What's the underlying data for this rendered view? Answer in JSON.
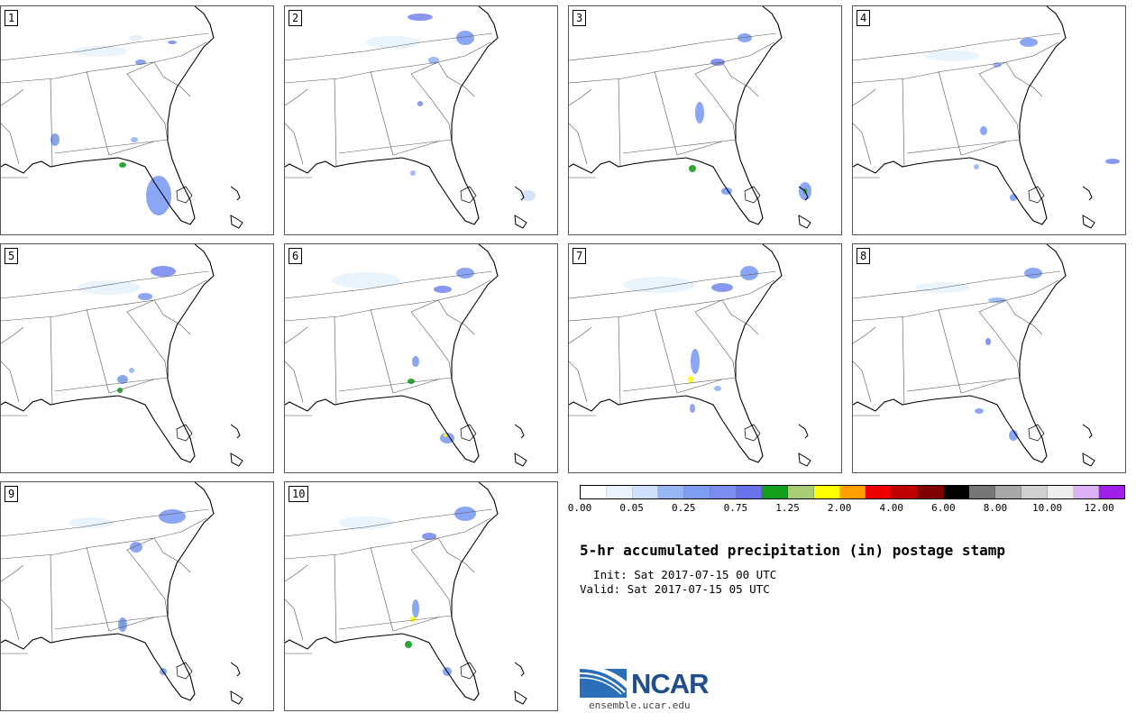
{
  "members": [
    {
      "label": "1"
    },
    {
      "label": "2"
    },
    {
      "label": "3"
    },
    {
      "label": "4"
    },
    {
      "label": "5"
    },
    {
      "label": "6"
    },
    {
      "label": "7"
    },
    {
      "label": "8"
    },
    {
      "label": "9"
    },
    {
      "label": "10"
    }
  ],
  "colorbar": {
    "colors": [
      "#ffffff",
      "#e8f3fd",
      "#cfe0fa",
      "#94b6f5",
      "#7d9cf3",
      "#7b8df0",
      "#6a73ec",
      "#129f1c",
      "#a8cd73",
      "#ffff00",
      "#ffa000",
      "#ee0000",
      "#c00000",
      "#800000",
      "#000000",
      "#777777",
      "#a8a8a8",
      "#cfcfcf",
      "#eeeeee",
      "#ddb0f8",
      "#a020e8"
    ],
    "tick_labels": [
      "0.00",
      "0.05",
      "0.25",
      "0.75",
      "1.25",
      "2.00",
      "4.00",
      "6.00",
      "8.00",
      "10.00",
      "12.00"
    ]
  },
  "title": "5-hr accumulated precipitation (in) postage stamp",
  "init_line": "  Init: Sat 2017-07-15 00 UTC",
  "valid_line": "Valid: Sat 2017-07-15 05 UTC",
  "logo": {
    "text": "NCAR",
    "url": "ensemble.ucar.edu",
    "brand_color": "#1f4e8c"
  }
}
